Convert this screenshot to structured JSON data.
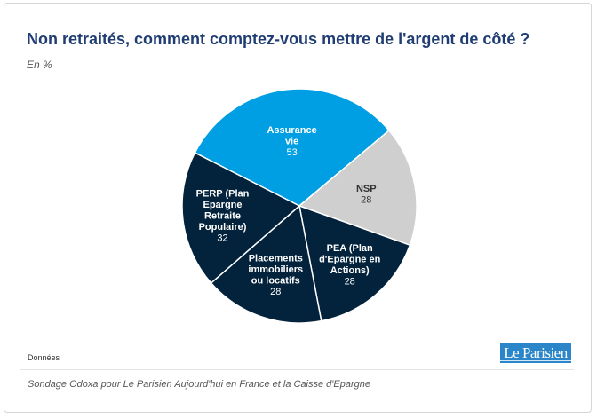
{
  "header": {
    "title": "Non retraités, comment comptez-vous mettre de l'argent de côté ?",
    "subtitle": "En %"
  },
  "footer": {
    "donnees": "Données",
    "logo": "Le Parisien",
    "source": "Sondage Odoxa pour Le Parisien Aujourd'hui en France et la Caisse d'Epargne"
  },
  "colors": {
    "blue": "#009fe3",
    "grey": "#cfcfcf",
    "navy": "#03223b",
    "title": "#1f3d73"
  },
  "chart_data": {
    "type": "pie",
    "title": "Non retraités, comment comptez-vous mettre de l'argent de côté ?",
    "subtitle": "En %",
    "slices": [
      {
        "label": [
          "Assurance",
          "vie"
        ],
        "value": 53,
        "color": "#009fe3"
      },
      {
        "label": [
          "NSP"
        ],
        "value": 28,
        "color": "#cfcfcf"
      },
      {
        "label": [
          "PEA (Plan",
          "d'Epargne en",
          "Actions)"
        ],
        "value": 28,
        "color": "#03223b"
      },
      {
        "label": [
          "Placements",
          "immobiliers",
          "ou locatifs"
        ],
        "value": 28,
        "color": "#03223b"
      },
      {
        "label": [
          "PERP (Plan",
          "Epargne",
          "Retraite",
          "Populaire)"
        ],
        "value": 32,
        "color": "#03223b"
      }
    ]
  }
}
